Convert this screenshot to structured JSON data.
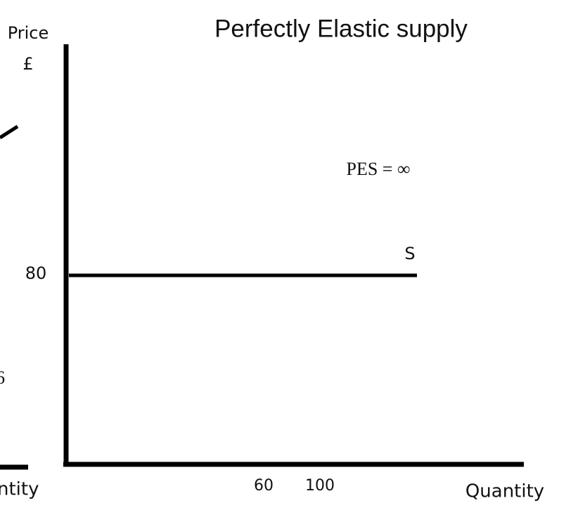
{
  "title": "Perfectly Elastic supply",
  "y_axis": {
    "label": "Price",
    "unit": "£",
    "price_label": "80"
  },
  "x_axis": {
    "label": "Quantity",
    "quantity_labels": [
      "60",
      "100"
    ]
  },
  "supply_curve": {
    "label": "S"
  },
  "annotation": "PES = ∞",
  "cropped_left": {
    "axis_label": "ntity",
    "value_label": "6"
  }
}
